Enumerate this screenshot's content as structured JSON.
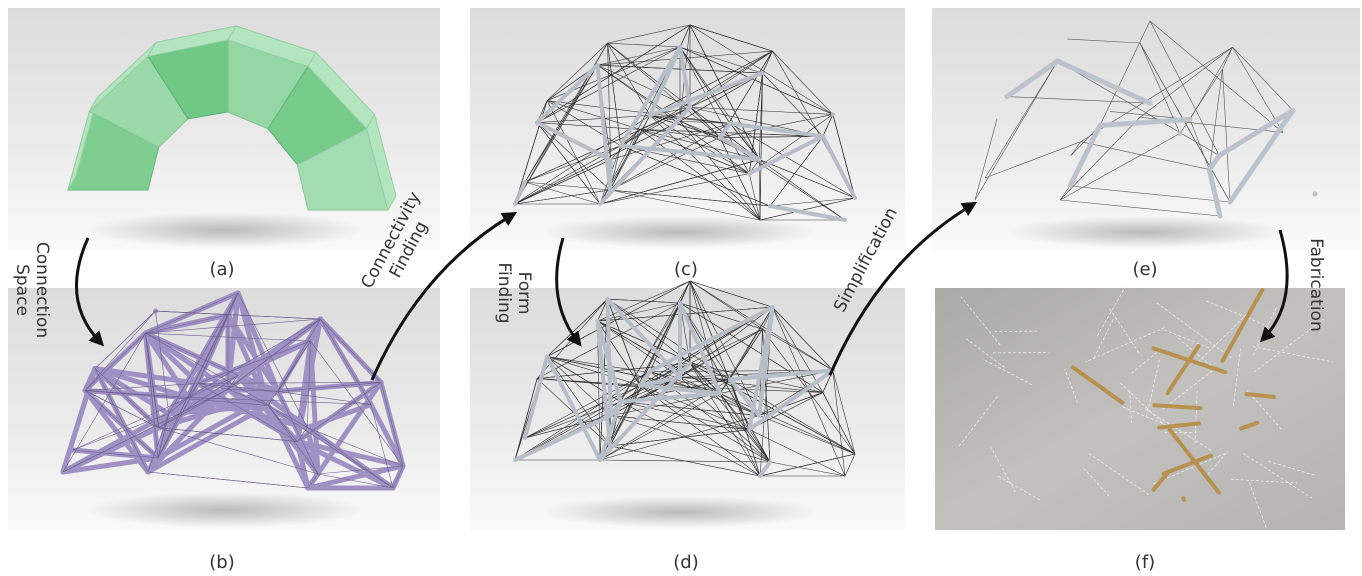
{
  "panels": [
    {
      "label": "(a)"
    },
    {
      "label": "(b)"
    },
    {
      "label": "(c)"
    },
    {
      "label": "(d)"
    },
    {
      "label": "(e)"
    },
    {
      "label": "(f)"
    }
  ],
  "arrows": [
    {
      "lines": [
        "Connection",
        "Space"
      ]
    },
    {
      "lines": [
        "Connectivity",
        "Finding"
      ]
    },
    {
      "lines": [
        "Form",
        "Finding"
      ]
    },
    {
      "lines": [
        "Simplification"
      ]
    },
    {
      "lines": [
        "Fabrication"
      ]
    }
  ]
}
